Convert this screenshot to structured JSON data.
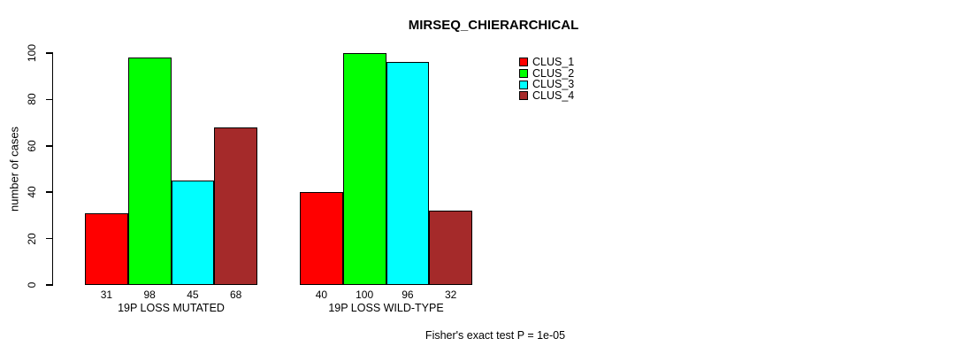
{
  "chart_data": {
    "type": "bar",
    "title": "MIRSEQ_CHIERARCHICAL",
    "ylabel": "number of cases",
    "xlabel": "",
    "ylim": [
      0,
      100
    ],
    "yticks": [
      0,
      20,
      40,
      60,
      80,
      100
    ],
    "grid": false,
    "categories": [
      "19P LOSS MUTATED",
      "19P LOSS WILD-TYPE"
    ],
    "series": [
      {
        "name": "CLUS_1",
        "color": "#FF0000",
        "values": [
          31,
          40
        ]
      },
      {
        "name": "CLUS_2",
        "color": "#00FF00",
        "values": [
          98,
          100
        ]
      },
      {
        "name": "CLUS_3",
        "color": "#00FFFF",
        "values": [
          45,
          96
        ]
      },
      {
        "name": "CLUS_4",
        "color": "#A52A2A",
        "values": [
          68,
          32
        ]
      }
    ],
    "show_bar_values": true,
    "legend_position": "top-right",
    "annotation": "Fisher's exact test P = 1e-05",
    "axis_color": "#000000",
    "background_color": "#FFFFFF"
  }
}
